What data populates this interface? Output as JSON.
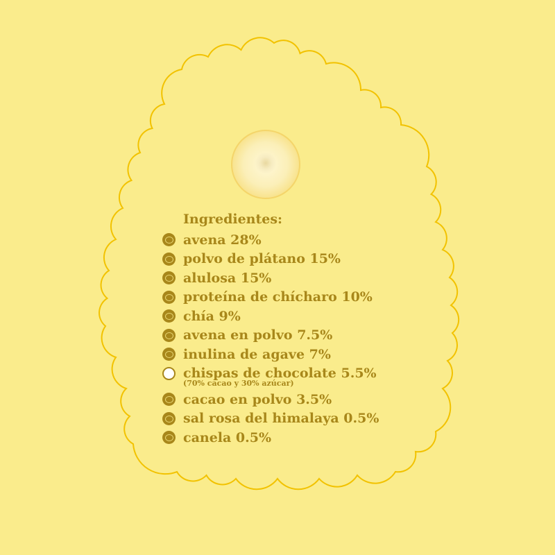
{
  "colors": {
    "background": "#FAEC8C",
    "text": "#A8871A",
    "outline": "#F2C200"
  },
  "title": "Ingredientes:",
  "ingredients": [
    {
      "label": "avena 28%",
      "icon": "oat-icon"
    },
    {
      "label": "polvo de plátano 15%",
      "icon": "banana-icon"
    },
    {
      "label": "alulosa 15%",
      "icon": "sugar-icon"
    },
    {
      "label": "proteína de chícharo 10%",
      "icon": "pea-icon"
    },
    {
      "label": "chía 9%",
      "icon": "chia-icon"
    },
    {
      "label": "avena en polvo 7.5%",
      "icon": "oat-icon"
    },
    {
      "label": "inulina de agave 7%",
      "icon": "agave-icon"
    },
    {
      "label": "chispas de chocolate 5.5%",
      "icon": "chocolate-chip-icon",
      "note": "(70% cacao y 30% azúcar)"
    },
    {
      "label": "cacao en polvo 3.5%",
      "icon": "cacao-icon"
    },
    {
      "label": "sal rosa del himalaya 0.5%",
      "icon": "salt-icon"
    },
    {
      "label": "canela 0.5%",
      "icon": "cinnamon-icon"
    }
  ]
}
